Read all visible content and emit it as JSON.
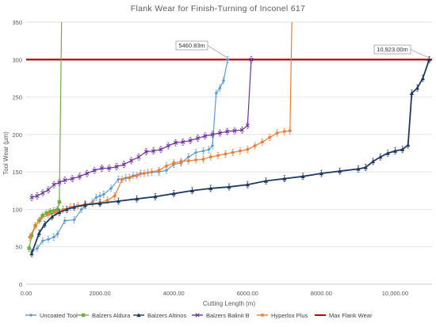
{
  "chart_data": {
    "type": "line",
    "title": "Flank Wear for Finish-Turning of Inconel 617",
    "xlabel": "Cutting Length (m)",
    "ylabel": "Tool Wear (µm)",
    "xlim": [
      0,
      11000
    ],
    "ylim": [
      0,
      350
    ],
    "xticks": [
      0,
      2000,
      4000,
      6000,
      8000,
      10000
    ],
    "xtick_labels": [
      "0.00",
      "2000.00",
      "4000.00",
      "6000.00",
      "8000.00",
      "10,000.00"
    ],
    "yticks": [
      0,
      50,
      100,
      150,
      200,
      250,
      300,
      350
    ],
    "grid": "horizontal",
    "legend_position": "bottom",
    "threshold": {
      "name": "Max Flank Wear",
      "value": 300,
      "color": "#c00000"
    },
    "annotations": [
      {
        "text": "5460.83m",
        "x": 5460,
        "y": 300
      },
      {
        "text": "10,923.00m",
        "x": 10923,
        "y": 300
      }
    ],
    "series": [
      {
        "name": "Uncoated Tool",
        "color": "#5b9bd5",
        "marker": "diamond",
        "points": [
          [
            150,
            43
          ],
          [
            300,
            48
          ],
          [
            450,
            58
          ],
          [
            600,
            60
          ],
          [
            750,
            63
          ],
          [
            850,
            67
          ],
          [
            1050,
            85
          ],
          [
            1300,
            86
          ],
          [
            1500,
            100
          ],
          [
            1600,
            105
          ],
          [
            1800,
            110
          ],
          [
            1900,
            116
          ],
          [
            2000,
            118
          ],
          [
            2100,
            120
          ],
          [
            2300,
            128
          ],
          [
            2500,
            140
          ],
          [
            2700,
            142
          ],
          [
            2900,
            145
          ],
          [
            3100,
            148
          ],
          [
            3300,
            149
          ],
          [
            3600,
            150
          ],
          [
            3800,
            152
          ],
          [
            4000,
            160
          ],
          [
            4200,
            162
          ],
          [
            4400,
            170
          ],
          [
            4600,
            176
          ],
          [
            4800,
            178
          ],
          [
            4950,
            180
          ],
          [
            5050,
            185
          ],
          [
            5150,
            255
          ],
          [
            5250,
            262
          ],
          [
            5350,
            272
          ],
          [
            5460.83,
            300
          ]
        ]
      },
      {
        "name": "Balzers Aldura",
        "color": "#70ad47",
        "marker": "square",
        "points": [
          [
            80,
            48
          ],
          [
            150,
            65
          ],
          [
            250,
            78
          ],
          [
            350,
            85
          ],
          [
            450,
            92
          ],
          [
            550,
            95
          ],
          [
            650,
            97
          ],
          [
            750,
            98
          ],
          [
            850,
            100
          ],
          [
            900,
            110
          ],
          [
            960,
            350
          ]
        ]
      },
      {
        "name": "Balzers Altinos",
        "color": "#1f3864",
        "marker": "triangle",
        "points": [
          [
            150,
            41
          ],
          [
            350,
            68
          ],
          [
            500,
            80
          ],
          [
            700,
            90
          ],
          [
            900,
            96
          ],
          [
            1100,
            100
          ],
          [
            1300,
            103
          ],
          [
            1600,
            106
          ],
          [
            2000,
            108
          ],
          [
            2500,
            111
          ],
          [
            3000,
            114
          ],
          [
            3500,
            117
          ],
          [
            4000,
            121
          ],
          [
            4500,
            125
          ],
          [
            5000,
            128
          ],
          [
            5500,
            130
          ],
          [
            6000,
            133
          ],
          [
            6500,
            138
          ],
          [
            7000,
            141
          ],
          [
            7500,
            144
          ],
          [
            8000,
            148
          ],
          [
            8500,
            151
          ],
          [
            9000,
            154
          ],
          [
            9200,
            156
          ],
          [
            9400,
            164
          ],
          [
            9600,
            170
          ],
          [
            9800,
            175
          ],
          [
            10000,
            178
          ],
          [
            10200,
            180
          ],
          [
            10350,
            186
          ],
          [
            10450,
            255
          ],
          [
            10600,
            262
          ],
          [
            10750,
            275
          ],
          [
            10923,
            300
          ]
        ]
      },
      {
        "name": "Balzers Balinit B",
        "color": "#7030a0",
        "marker": "cross",
        "points": [
          [
            150,
            116
          ],
          [
            300,
            118
          ],
          [
            450,
            122
          ],
          [
            600,
            126
          ],
          [
            750,
            133
          ],
          [
            900,
            136
          ],
          [
            1050,
            139
          ],
          [
            1250,
            141
          ],
          [
            1450,
            144
          ],
          [
            1650,
            148
          ],
          [
            1850,
            152
          ],
          [
            2050,
            155
          ],
          [
            2250,
            155
          ],
          [
            2450,
            157
          ],
          [
            2650,
            160
          ],
          [
            2850,
            165
          ],
          [
            3050,
            170
          ],
          [
            3250,
            177
          ],
          [
            3450,
            178
          ],
          [
            3650,
            180
          ],
          [
            3850,
            185
          ],
          [
            4050,
            189
          ],
          [
            4250,
            190
          ],
          [
            4450,
            192
          ],
          [
            4650,
            195
          ],
          [
            4850,
            198
          ],
          [
            5050,
            200
          ],
          [
            5250,
            202
          ],
          [
            5450,
            204
          ],
          [
            5650,
            205
          ],
          [
            5850,
            206
          ],
          [
            6000,
            212
          ],
          [
            6100,
            300
          ]
        ]
      },
      {
        "name": "Hyperlox Plus",
        "color": "#ed7d31",
        "marker": "star",
        "points": [
          [
            100,
            63
          ],
          [
            250,
            78
          ],
          [
            400,
            88
          ],
          [
            600,
            93
          ],
          [
            800,
            96
          ],
          [
            1000,
            100
          ],
          [
            1200,
            103
          ],
          [
            1400,
            105
          ],
          [
            1600,
            107
          ],
          [
            1800,
            108
          ],
          [
            2000,
            109
          ],
          [
            2200,
            112
          ],
          [
            2400,
            118
          ],
          [
            2600,
            140
          ],
          [
            2800,
            142
          ],
          [
            3000,
            145
          ],
          [
            3200,
            148
          ],
          [
            3400,
            150
          ],
          [
            3600,
            152
          ],
          [
            3800,
            158
          ],
          [
            4000,
            162
          ],
          [
            4200,
            164
          ],
          [
            4400,
            165
          ],
          [
            4600,
            166
          ],
          [
            4800,
            167
          ],
          [
            5000,
            170
          ],
          [
            5200,
            172
          ],
          [
            5400,
            174
          ],
          [
            5600,
            176
          ],
          [
            5800,
            178
          ],
          [
            6000,
            180
          ],
          [
            6200,
            185
          ],
          [
            6400,
            190
          ],
          [
            6600,
            196
          ],
          [
            6800,
            202
          ],
          [
            7000,
            204
          ],
          [
            7150,
            205
          ],
          [
            7200,
            350
          ]
        ]
      },
      {
        "name": "Max Flank Wear",
        "color": "#c00000",
        "marker": "none",
        "points": [
          [
            0,
            300
          ],
          [
            11000,
            300
          ]
        ]
      }
    ]
  }
}
